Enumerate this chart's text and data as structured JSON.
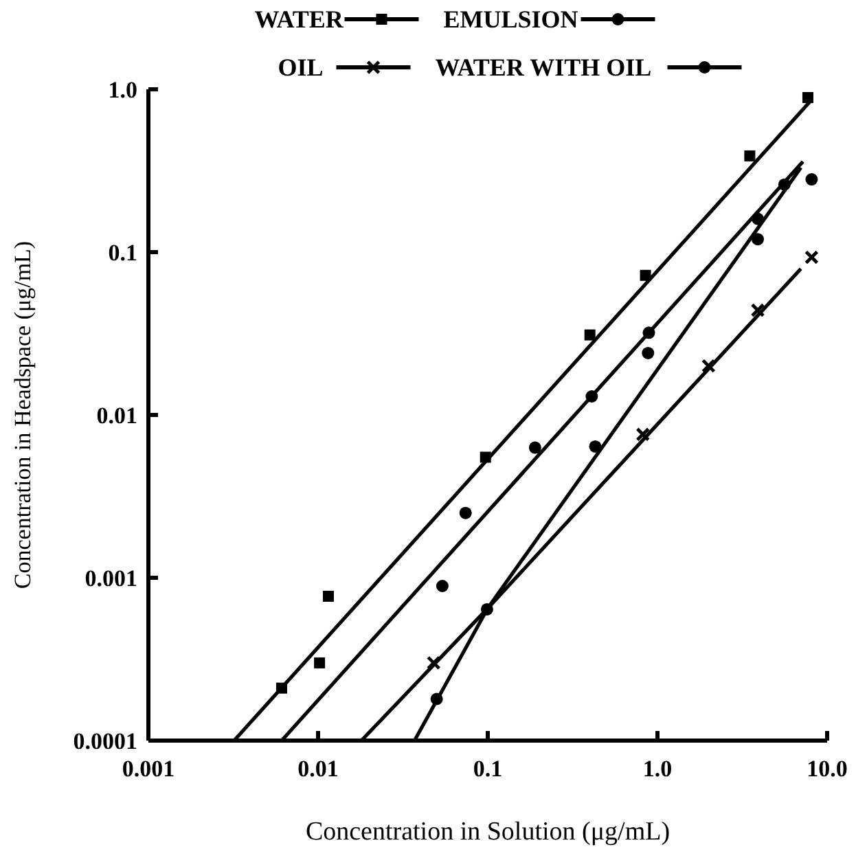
{
  "chart_data": {
    "type": "scatter",
    "xlabel": "Concentration in Solution (μg/mL)",
    "ylabel": "Concentration in Headspace (μg/mL)",
    "log": "xy",
    "grid": false,
    "legend": "top",
    "line_style": "solid",
    "xlim": [
      0.001,
      10
    ],
    "xticks": [
      0.001,
      0.01,
      0.1,
      {
        "value": 1,
        "label": "1.0"
      },
      {
        "value": 10,
        "label": "10.0"
      }
    ],
    "ylim": [
      0.0001,
      1
    ],
    "yticks": [
      0.0001,
      0.001,
      0.01,
      0.1,
      {
        "value": 1,
        "label": "1.0"
      }
    ],
    "series": [
      {
        "name": "WATER",
        "color": "#000000",
        "marker": "square",
        "x": [
          0.0061,
          0.0102,
          0.0115,
          0.097,
          0.4,
          0.85,
          3.5,
          7.7
        ],
        "values": [
          0.00021,
          0.0003,
          0.00077,
          0.0055,
          0.031,
          0.072,
          0.39,
          0.89
        ]
      },
      {
        "name": "EMULSION",
        "color": "#000000",
        "marker": "circle",
        "x": [
          0.05,
          0.099,
          0.43,
          0.88,
          3.9,
          8.1
        ],
        "values": [
          0.00018,
          0.00064,
          0.0064,
          0.024,
          0.12,
          0.28
        ]
      },
      {
        "name": "OIL",
        "color": "#000000",
        "marker": "cross",
        "x": [
          0.048,
          0.82,
          2.0,
          3.9,
          8.1
        ],
        "values": [
          0.0003,
          0.0076,
          0.02,
          0.044,
          0.093
        ]
      },
      {
        "name": "WATER WITH OIL",
        "color": "#000000",
        "marker": "circle",
        "x": [
          0.054,
          0.074,
          0.19,
          0.41,
          0.89,
          3.9,
          5.6
        ],
        "values": [
          0.00089,
          0.0025,
          0.0063,
          0.013,
          0.032,
          0.16,
          0.26
        ]
      },
      {
        "type": "line",
        "color": "#000000",
        "x": [
          0.0032,
          8
        ],
        "values": [
          0.0001,
          0.85
        ]
      },
      {
        "type": "line",
        "color": "#000000",
        "x": [
          0.0061,
          7.2
        ],
        "values": [
          0.0001,
          0.36
        ]
      },
      {
        "type": "line",
        "color": "#000000",
        "x": [
          0.037,
          0.1,
          7
        ],
        "values": [
          0.0001,
          0.00065,
          0.33
        ]
      },
      {
        "type": "line",
        "color": "#000000",
        "x": [
          0.018,
          0.1,
          7
        ],
        "values": [
          0.0001,
          0.00065,
          0.079
        ]
      }
    ]
  }
}
